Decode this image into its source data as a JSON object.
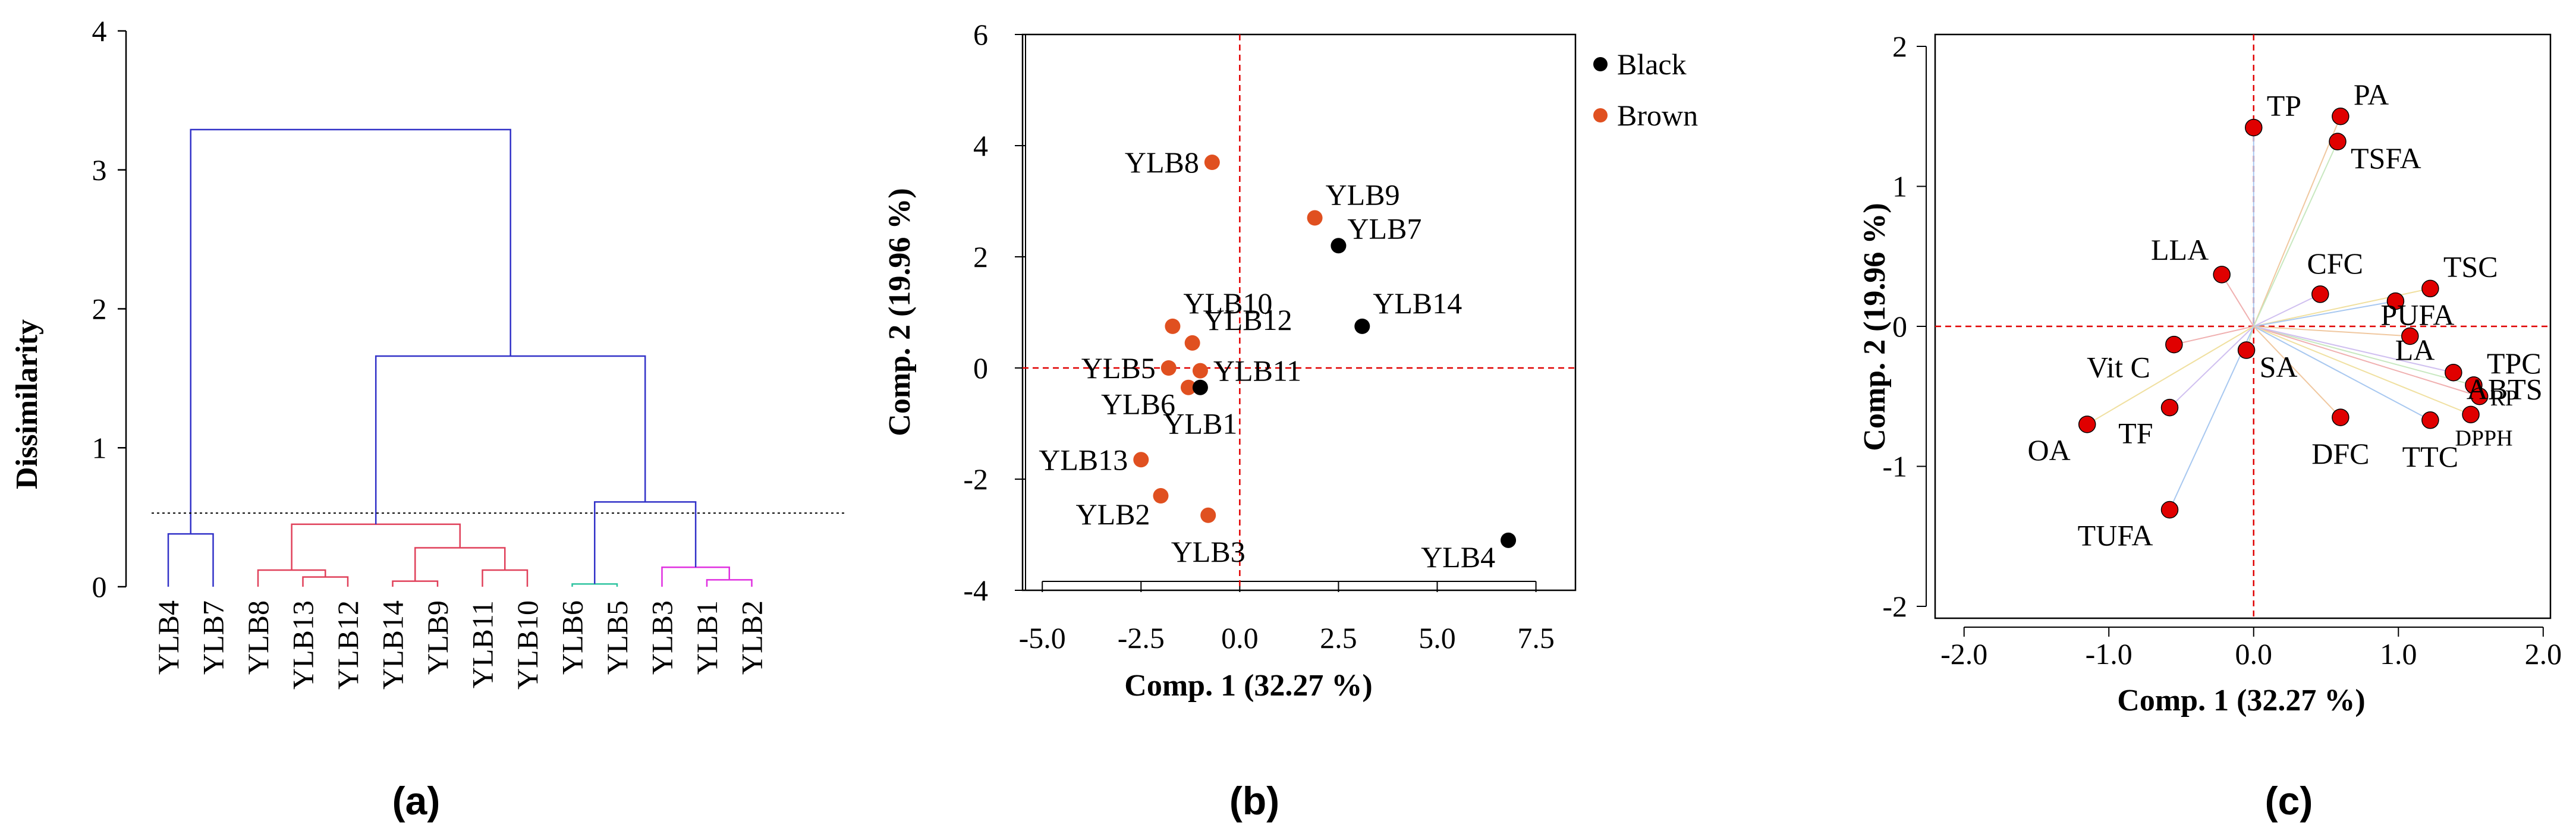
{
  "panels": [
    "(a)",
    "(b)",
    "(c)"
  ],
  "colors": {
    "blue": "#3232c8",
    "red": "#e0405a",
    "green": "#2ec4a0",
    "magenta": "#e030e0",
    "black": "#000000",
    "brown": "#e05020",
    "marker_red": "#e00000",
    "guide": "#e00000",
    "loading_lines": [
      "#a8c8f0",
      "#f0c8a0",
      "#c8e8c0",
      "#f0b0b0",
      "#d0c0f0",
      "#f0e0a0"
    ]
  },
  "chart_data": [
    {
      "type": "dendrogram",
      "panel": "(a)",
      "ylabel": "Dissimilarity",
      "ylim": [
        0,
        4
      ],
      "yticks": [
        "0",
        "1",
        "2",
        "3",
        "4"
      ],
      "cut_height": 0.53,
      "leaves": [
        "YLB4",
        "YLB7",
        "YLB8",
        "YLB13",
        "YLB12",
        "YLB14",
        "YLB9",
        "YLB11",
        "YLB10",
        "YLB6",
        "YLB5",
        "YLB3",
        "YLB1",
        "YLB2"
      ],
      "merges": [
        {
          "left": [
            0
          ],
          "right": [
            1
          ],
          "height": 0.38,
          "color": "blue"
        },
        {
          "left": [
            3
          ],
          "right": [
            4
          ],
          "height": 0.07,
          "color": "red"
        },
        {
          "left": [
            2
          ],
          "right": [
            3,
            4
          ],
          "height": 0.12,
          "color": "red"
        },
        {
          "left": [
            5
          ],
          "right": [
            6
          ],
          "height": 0.04,
          "color": "red"
        },
        {
          "left": [
            7
          ],
          "right": [
            8
          ],
          "height": 0.12,
          "color": "red"
        },
        {
          "left": [
            5,
            6
          ],
          "right": [
            7,
            8
          ],
          "height": 0.28,
          "color": "red"
        },
        {
          "left": [
            2,
            3,
            4
          ],
          "right": [
            5,
            6,
            7,
            8
          ],
          "height": 0.45,
          "color": "red"
        },
        {
          "left": [
            9
          ],
          "right": [
            10
          ],
          "height": 0.02,
          "color": "green"
        },
        {
          "left": [
            12
          ],
          "right": [
            13
          ],
          "height": 0.05,
          "color": "magenta"
        },
        {
          "left": [
            11
          ],
          "right": [
            12,
            13
          ],
          "height": 0.14,
          "color": "magenta"
        },
        {
          "left": [
            9,
            10
          ],
          "right": [
            11,
            12,
            13
          ],
          "height": 0.61,
          "color": "blue"
        },
        {
          "left": [
            2,
            3,
            4,
            5,
            6,
            7,
            8
          ],
          "right": [
            9,
            10,
            11,
            12,
            13
          ],
          "height": 1.66,
          "color": "blue"
        },
        {
          "left": [
            0,
            1
          ],
          "right": [
            2,
            3,
            4,
            5,
            6,
            7,
            8,
            9,
            10,
            11,
            12,
            13
          ],
          "height": 3.29,
          "color": "blue"
        }
      ]
    },
    {
      "type": "scatter",
      "panel": "(b)",
      "xlabel": "Comp. 1 (32.27 %)",
      "ylabel": "Comp. 2 (19.96 %)",
      "xlim": [
        -5.5,
        8.5
      ],
      "ylim": [
        -4,
        6
      ],
      "xticks": [
        -5,
        -2.5,
        0,
        2.5,
        5,
        7.5
      ],
      "xtick_labels": [
        "-5.0",
        "-2.5",
        "0.0",
        "2.5",
        "5.0",
        "7.5"
      ],
      "yticks": [
        -4,
        -2,
        0,
        2,
        4,
        6
      ],
      "ytick_labels": [
        "-4",
        "-2",
        "0",
        "2",
        "4",
        "6"
      ],
      "legend": [
        {
          "name": "Black",
          "color": "black"
        },
        {
          "name": "Brown",
          "color": "brown"
        }
      ],
      "points": [
        {
          "label": "YLB8",
          "x": -0.7,
          "y": 3.7,
          "group": "Brown",
          "pos": "left"
        },
        {
          "label": "YLB9",
          "x": 1.9,
          "y": 2.7,
          "group": "Brown",
          "pos": "above-right"
        },
        {
          "label": "YLB7",
          "x": 2.5,
          "y": 2.2,
          "group": "Black",
          "pos": "right-up"
        },
        {
          "label": "YLB14",
          "x": 3.1,
          "y": 0.75,
          "group": "Black",
          "pos": "above-right"
        },
        {
          "label": "YLB10",
          "x": -1.7,
          "y": 0.75,
          "group": "Brown",
          "pos": "above-right"
        },
        {
          "label": "YLB12",
          "x": -1.2,
          "y": 0.45,
          "group": "Brown",
          "pos": "above-right"
        },
        {
          "label": "YLB5",
          "x": -1.8,
          "y": 0.0,
          "group": "Brown",
          "pos": "left"
        },
        {
          "label": "YLB11",
          "x": -1.0,
          "y": -0.05,
          "group": "Brown",
          "pos": "right"
        },
        {
          "label": "YLB6",
          "x": -1.3,
          "y": -0.35,
          "group": "Brown",
          "pos": "left-down"
        },
        {
          "label": "YLB1",
          "x": -1.0,
          "y": -0.35,
          "group": "Black",
          "pos": "below"
        },
        {
          "label": "YLB13",
          "x": -2.5,
          "y": -1.65,
          "group": "Brown",
          "pos": "left"
        },
        {
          "label": "YLB2",
          "x": -2.0,
          "y": -2.3,
          "group": "Brown",
          "pos": "below-left"
        },
        {
          "label": "YLB3",
          "x": -0.8,
          "y": -2.65,
          "group": "Brown",
          "pos": "below"
        },
        {
          "label": "YLB4",
          "x": 6.8,
          "y": -3.1,
          "group": "Black",
          "pos": "left-down"
        }
      ]
    },
    {
      "type": "scatter",
      "subtype": "loadings",
      "panel": "(c)",
      "xlabel": "Comp. 1 (32.27 %)",
      "ylabel": "Comp. 2 (19.96 %)",
      "xlim": [
        -2.2,
        2.05
      ],
      "ylim": [
        -2,
        2
      ],
      "xticks": [
        -2,
        -1,
        0,
        1,
        2
      ],
      "xtick_labels": [
        "-2.0",
        "-1.0",
        "0.0",
        "1.0",
        "2.0"
      ],
      "yticks": [
        -2,
        -1,
        0,
        1,
        2
      ],
      "ytick_labels": [
        "-2",
        "-1",
        "0",
        "1",
        "2"
      ],
      "points": [
        {
          "label": "TP",
          "x": 0.0,
          "y": 1.42,
          "pos": "above-right"
        },
        {
          "label": "PA",
          "x": 0.6,
          "y": 1.5,
          "pos": "above-right"
        },
        {
          "label": "TSFA",
          "x": 0.58,
          "y": 1.32,
          "pos": "below-right"
        },
        {
          "label": "LLA",
          "x": -0.22,
          "y": 0.37,
          "pos": "above-left"
        },
        {
          "label": "CFC",
          "x": 0.46,
          "y": 0.23,
          "pos": "above"
        },
        {
          "label": "TSC",
          "x": 1.22,
          "y": 0.27,
          "pos": "above-right"
        },
        {
          "label": "PUFA",
          "x": 0.98,
          "y": 0.18,
          "pos": "right-down"
        },
        {
          "label": "LA",
          "x": 1.08,
          "y": -0.07,
          "pos": "right-down"
        },
        {
          "label": "TPC",
          "x": 1.52,
          "y": -0.42,
          "pos": "above-right"
        },
        {
          "label": "RP",
          "x": 1.56,
          "y": -0.5,
          "pos": "right-down-small"
        },
        {
          "label": "ABTS",
          "x": 1.38,
          "y": -0.33,
          "pos": "below-right"
        },
        {
          "label": "DPPH",
          "x": 1.5,
          "y": -0.63,
          "pos": "below-small"
        },
        {
          "label": "TTC",
          "x": 1.22,
          "y": -0.67,
          "pos": "below"
        },
        {
          "label": "DFC",
          "x": 0.6,
          "y": -0.65,
          "pos": "below"
        },
        {
          "label": "SA",
          "x": -0.05,
          "y": -0.17,
          "pos": "below-right"
        },
        {
          "label": "Vit C",
          "x": -0.55,
          "y": -0.13,
          "pos": "left-down"
        },
        {
          "label": "TF",
          "x": -0.58,
          "y": -0.58,
          "pos": "below-left"
        },
        {
          "label": "OA",
          "x": -1.15,
          "y": -0.7,
          "pos": "below-left"
        },
        {
          "label": "TUFA",
          "x": -0.58,
          "y": -1.31,
          "pos": "below-left"
        }
      ]
    }
  ]
}
